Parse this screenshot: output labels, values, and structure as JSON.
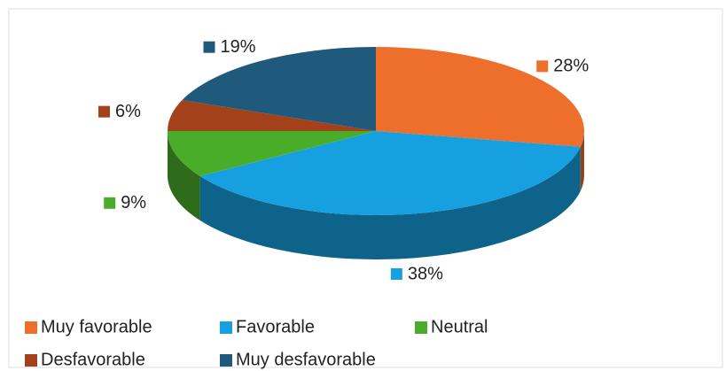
{
  "chart_data": {
    "type": "pie3d",
    "categories": [
      "Muy favorable",
      "Favorable",
      "Neutral",
      "Desfavorable",
      "Muy desfavorable"
    ],
    "values": [
      28,
      38,
      9,
      6,
      19
    ],
    "value_labels": [
      "28%",
      "38%",
      "9%",
      "6%",
      "19%"
    ],
    "colors": [
      "#ee6e2c",
      "#17a0e0",
      "#4aad2a",
      "#a3421a",
      "#1f5a7c"
    ],
    "legend": "bottom"
  }
}
